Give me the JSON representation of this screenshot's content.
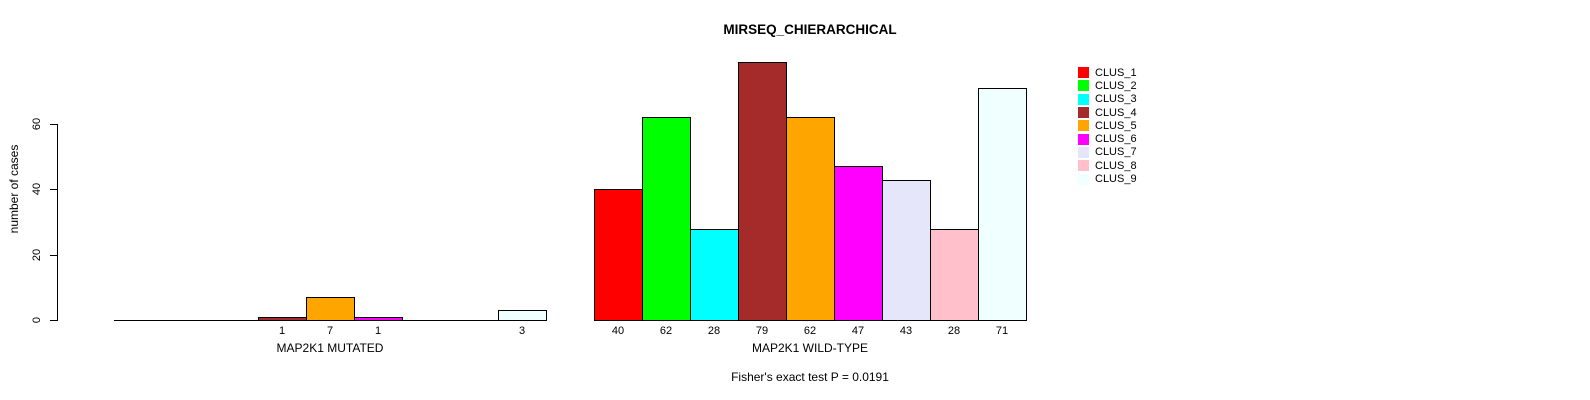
{
  "chart_data": {
    "type": "bar",
    "title": "MIRSEQ_CHIERARCHICAL",
    "ylabel": "number of cases",
    "yticks": [
      0,
      20,
      40,
      60
    ],
    "ylim": [
      0,
      60
    ],
    "grid": false,
    "legend_position": "top-right",
    "note": "Fisher's exact test P = 0.0191",
    "legend": [
      {
        "name": "CLUS_1",
        "color": "#FF0000"
      },
      {
        "name": "CLUS_2",
        "color": "#00FF00"
      },
      {
        "name": "CLUS_3",
        "color": "#00FFFF"
      },
      {
        "name": "CLUS_4",
        "color": "#A52A2A"
      },
      {
        "name": "CLUS_5",
        "color": "#FFA500"
      },
      {
        "name": "CLUS_6",
        "color": "#FF00FF"
      },
      {
        "name": "CLUS_7",
        "color": "#E6E6FA"
      },
      {
        "name": "CLUS_8",
        "color": "#FFC0CB"
      },
      {
        "name": "CLUS_9",
        "color": "#F0FFFF"
      }
    ],
    "groups": [
      {
        "label": "MAP2K1 MUTATED",
        "categories": [
          "CLUS_1",
          "CLUS_2",
          "CLUS_3",
          "CLUS_4",
          "CLUS_5",
          "CLUS_6",
          "CLUS_7",
          "CLUS_8",
          "CLUS_9"
        ],
        "values": [
          0,
          0,
          0,
          1,
          7,
          1,
          0,
          0,
          3
        ]
      },
      {
        "label": "MAP2K1 WILD-TYPE",
        "categories": [
          "CLUS_1",
          "CLUS_2",
          "CLUS_3",
          "CLUS_4",
          "CLUS_5",
          "CLUS_6",
          "CLUS_7",
          "CLUS_8",
          "CLUS_9"
        ],
        "values": [
          40,
          62,
          28,
          79,
          62,
          47,
          43,
          28,
          71
        ]
      }
    ]
  }
}
